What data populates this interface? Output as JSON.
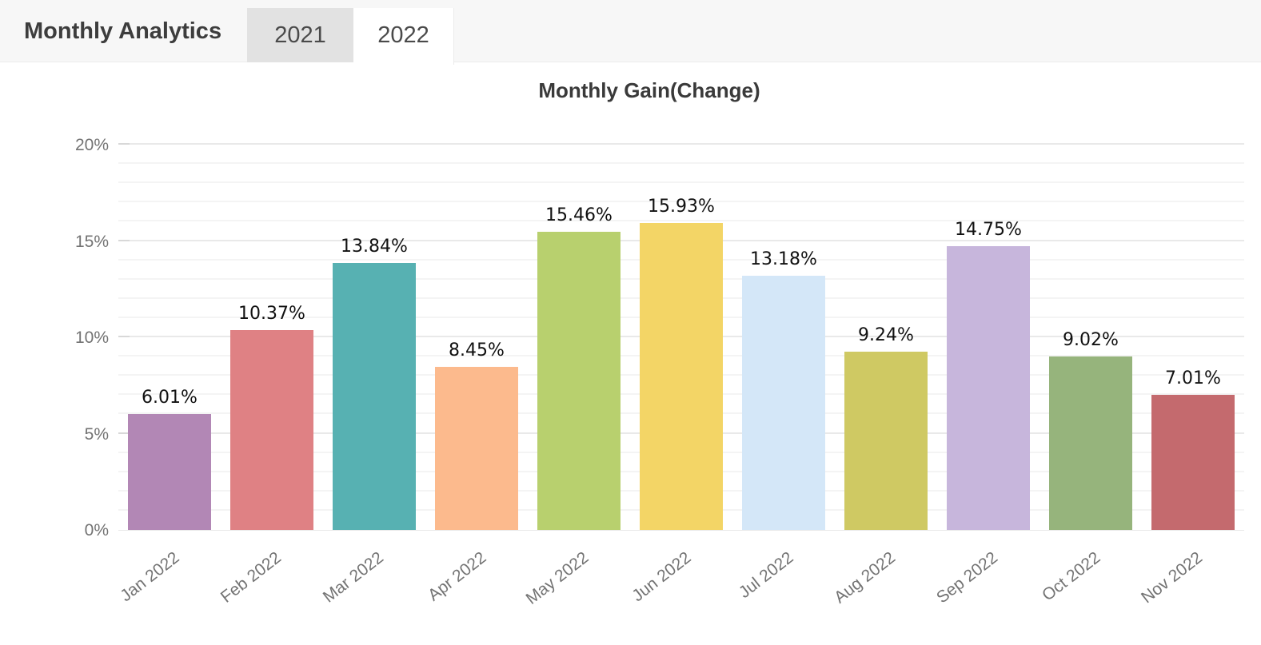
{
  "header": {
    "title": "Monthly Analytics",
    "tabs": [
      {
        "label": "2021",
        "active": false
      },
      {
        "label": "2022",
        "active": true
      }
    ]
  },
  "chart_data": {
    "type": "bar",
    "title": "Monthly Gain(Change)",
    "categories": [
      "Jan 2022",
      "Feb 2022",
      "Mar 2022",
      "Apr 2022",
      "May 2022",
      "Jun 2022",
      "Jul 2022",
      "Aug 2022",
      "Sep 2022",
      "Oct 2022",
      "Nov 2022"
    ],
    "values": [
      6.01,
      10.37,
      13.84,
      8.45,
      15.46,
      15.93,
      13.18,
      9.24,
      14.75,
      9.02,
      7.01
    ],
    "value_labels": [
      "6.01%",
      "10.37%",
      "13.84%",
      "8.45%",
      "15.46%",
      "15.93%",
      "13.18%",
      "9.24%",
      "14.75%",
      "9.02%",
      "7.01%"
    ],
    "bar_colors": [
      "#b287b5",
      "#df8184",
      "#57b1b2",
      "#fcba8d",
      "#b8d06e",
      "#f3d566",
      "#d4e7f8",
      "#cfc963",
      "#c7b6dc",
      "#96b47c",
      "#c46a6e"
    ],
    "xlabel": "",
    "ylabel": "",
    "ylim": [
      0,
      20
    ],
    "y_major_ticks": [
      {
        "value": 0,
        "label": "0%"
      },
      {
        "value": 5,
        "label": "5%"
      },
      {
        "value": 10,
        "label": "10%"
      },
      {
        "value": 15,
        "label": "15%"
      },
      {
        "value": 20,
        "label": "20%"
      }
    ],
    "minor_grid_step_percent": 1,
    "grid": true,
    "legend_position": "none",
    "axis_label_color": "#737373",
    "value_label_color": "#111111",
    "title_color": "#3a3a3a"
  }
}
